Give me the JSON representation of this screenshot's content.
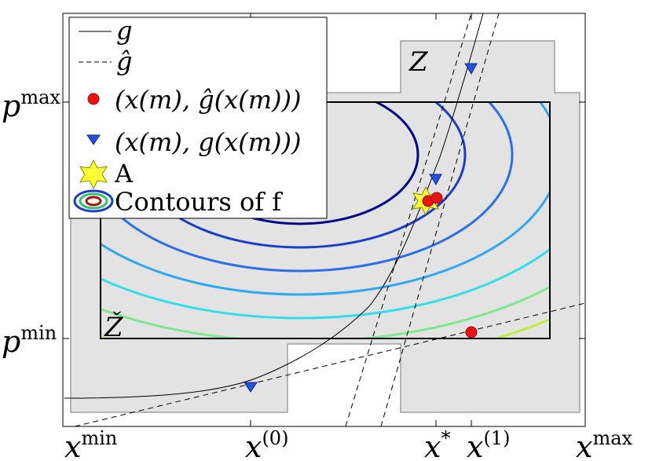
{
  "axes": {
    "x_ticks": [
      {
        "base": "x",
        "sup": "min"
      },
      {
        "base": "x",
        "sup": "(0)"
      },
      {
        "base": "x",
        "sup": "*"
      },
      {
        "base": "x",
        "sup": "(1)"
      },
      {
        "base": "x",
        "sup": "max"
      }
    ],
    "y_ticks": [
      {
        "base": "p",
        "sup": "max"
      },
      {
        "base": "p",
        "sup": "min"
      }
    ]
  },
  "region_labels": {
    "outer": "Z",
    "inner": "Ž"
  },
  "legend": {
    "entries": [
      {
        "label": "g",
        "marker": "solid-line"
      },
      {
        "label": "ĝ",
        "marker": "dashed-line"
      },
      {
        "label": "(x(m), ĝ(x(m)))",
        "marker": "red-circle"
      },
      {
        "label": "(x(m), g(x(m)))",
        "marker": "blue-triangle"
      },
      {
        "label": "A",
        "marker": "yellow-star"
      },
      {
        "label": "Contours of f",
        "marker": "contour-ellipses"
      }
    ]
  },
  "colors": {
    "region_fill": "#e3e3e3",
    "red_marker": "#ee1111",
    "blue_marker": "#2255dd",
    "star": "#ffff33",
    "contours": [
      "#00008b",
      "#1a3fc7",
      "#2b6fe8",
      "#2fa8f0",
      "#33e0e8",
      "#7fe890",
      "#b8f040",
      "#f0e020",
      "#ffb000",
      "#ff6010",
      "#e02010",
      "#8b0000"
    ]
  }
}
